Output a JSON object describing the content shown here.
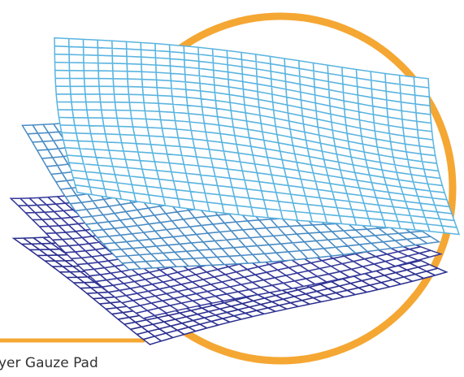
{
  "caption": "yer Gauze Pad"
}
